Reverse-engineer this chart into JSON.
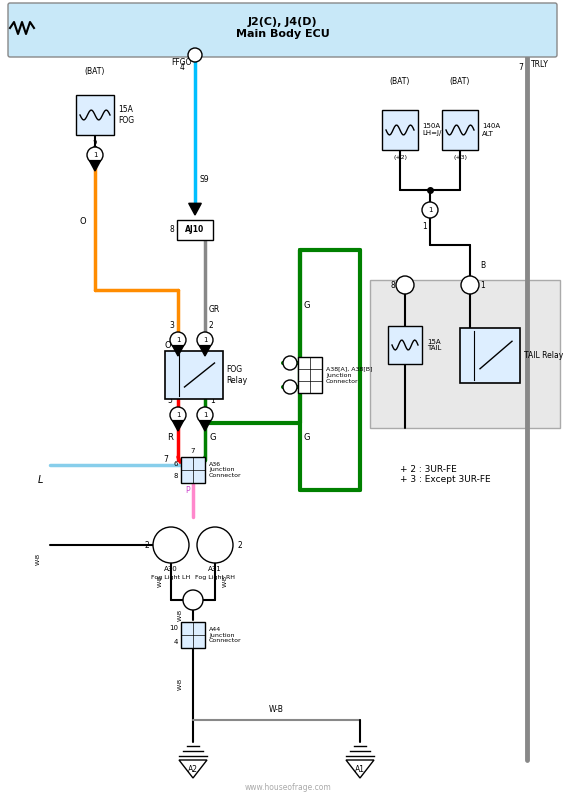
{
  "title": "J2(C), J4(D)\nMain Body ECU",
  "bg_color": "#ffffff",
  "ecu_bar_color": "#c8e8f8",
  "wire_colors": {
    "orange": "#FF8C00",
    "blue_light": "#00BFFF",
    "blue_med": "#4db8ff",
    "gray": "#888888",
    "green": "#008000",
    "red": "#FF0000",
    "black": "#000000",
    "pink": "#FF69B4",
    "white": "#FFFFFF"
  },
  "notes": "+ 2 : 3UR-FE\n+ 3 : Except 3UR-FE",
  "watermark": "www.houseofrage.com"
}
